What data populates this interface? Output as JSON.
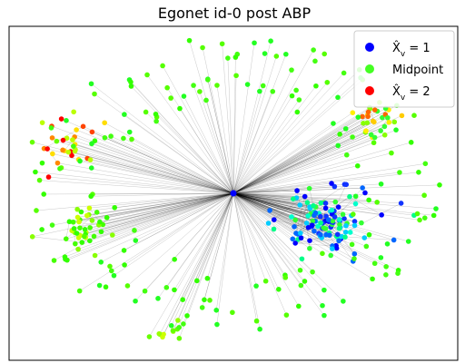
{
  "chart_data": {
    "type": "scatter",
    "title": "Egonet id-0 post ABP",
    "xlabel": "",
    "ylabel": "",
    "grid": false,
    "legend_position": "top-right",
    "legend": [
      {
        "label": "X̂",
        "sub": "v",
        "suffix": " = 1",
        "color": "#0000ff"
      },
      {
        "label": "Midpoint",
        "sub": "",
        "suffix": "",
        "color": "#44ff22"
      },
      {
        "label": "X̂",
        "sub": "v",
        "suffix": " = 2",
        "color": "#ff0000"
      }
    ],
    "ego_node": {
      "x": 0.0,
      "y": 0.0,
      "color": "#0000ff"
    },
    "clusters": [
      {
        "name": "dense-core",
        "cx": 0.42,
        "cy": -0.17,
        "r": 0.22,
        "n": 120,
        "colors": [
          "#0000ff",
          "#1133ff",
          "#0066ff",
          "#00ccff",
          "#00ffcc",
          "#00ff88",
          "#33ff33"
        ]
      },
      {
        "name": "upper-right",
        "cx": 0.64,
        "cy": 0.42,
        "r": 0.12,
        "n": 30,
        "colors": [
          "#ff6600",
          "#ffcc00",
          "#ffee00",
          "#88ff00",
          "#33ff33"
        ]
      },
      {
        "name": "left",
        "cx": -0.73,
        "cy": 0.28,
        "r": 0.15,
        "n": 32,
        "colors": [
          "#ff0000",
          "#ff4400",
          "#ff8800",
          "#ffdd00",
          "#bbff00",
          "#66ff00"
        ]
      },
      {
        "name": "lower-left",
        "cx": -0.68,
        "cy": -0.2,
        "r": 0.2,
        "n": 40,
        "colors": [
          "#44ff00",
          "#88ff00",
          "#ccff00",
          "#33ff00"
        ]
      },
      {
        "name": "bottom",
        "cx": -0.28,
        "cy": -0.82,
        "r": 0.08,
        "n": 10,
        "colors": [
          "#ccff00",
          "#99ff00",
          "#66ff00"
        ]
      },
      {
        "name": "periphery",
        "cx": 0.0,
        "cy": 0.05,
        "r": 1.0,
        "n": 170,
        "colors": [
          "#33ff00",
          "#44ff11",
          "#55ff00",
          "#22ff22"
        ]
      }
    ],
    "xlim": [
      -1.0,
      1.0
    ],
    "ylim": [
      -1.0,
      1.0
    ]
  }
}
